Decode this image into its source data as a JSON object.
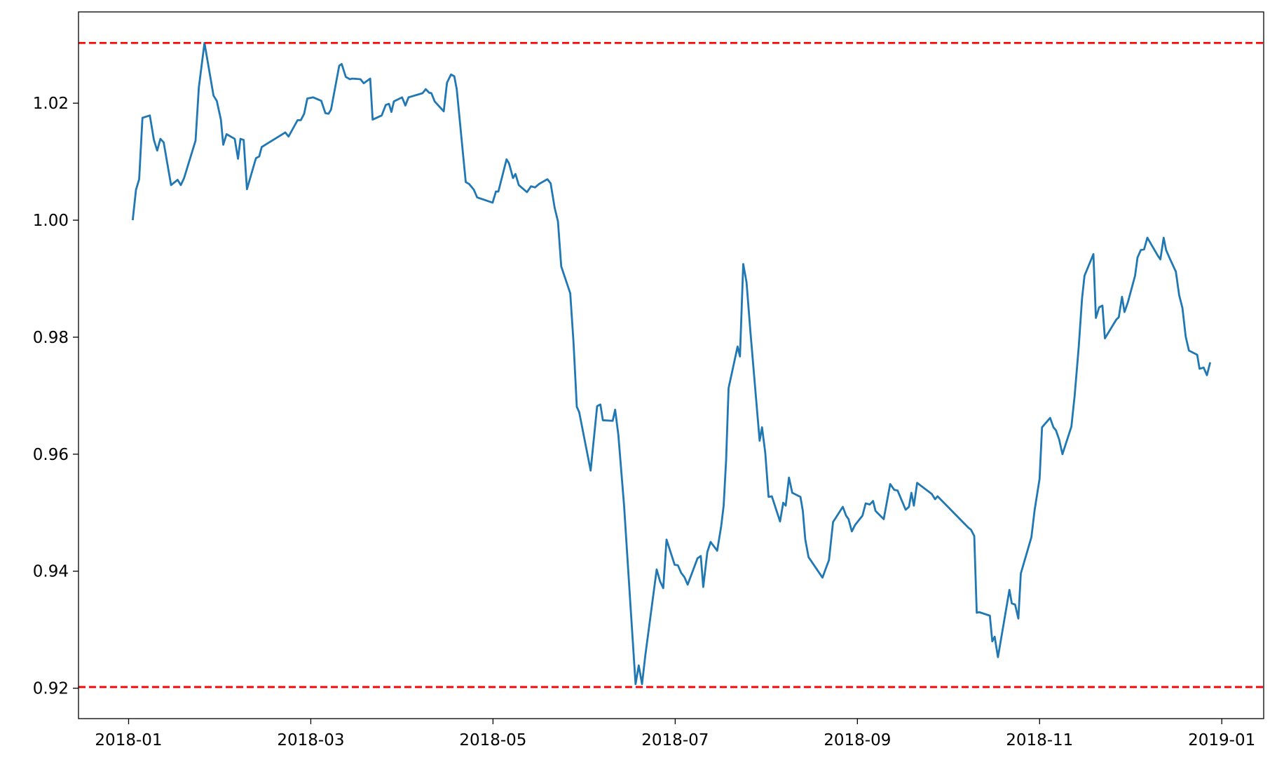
{
  "chart_data": {
    "type": "line",
    "x": [
      0.045,
      0.081,
      0.116,
      0.152,
      0.233,
      0.278,
      0.314,
      0.349,
      0.385,
      0.466,
      0.538,
      0.573,
      0.609,
      0.735,
      0.771,
      0.833,
      0.932,
      0.968,
      1.013,
      1.039,
      1.075,
      1.165,
      1.201,
      1.228,
      1.263,
      1.299,
      1.398,
      1.434,
      1.461,
      1.72,
      1.756,
      1.855,
      1.891,
      1.927,
      1.962,
      2.025,
      2.115,
      2.16,
      2.195,
      2.222,
      2.312,
      2.339,
      2.384,
      2.428,
      2.455,
      2.545,
      2.581,
      2.652,
      2.679,
      2.778,
      2.823,
      2.858,
      2.885,
      2.912,
      3.002,
      3.038,
      3.073,
      3.226,
      3.262,
      3.298,
      3.324,
      3.36,
      3.459,
      3.495,
      3.539,
      3.575,
      3.602,
      3.701,
      3.737,
      3.79,
      3.826,
      3.996,
      4.032,
      4.059,
      4.149,
      4.176,
      4.22,
      4.247,
      4.283,
      4.373,
      4.418,
      4.462,
      4.507,
      4.597,
      4.633,
      4.677,
      4.713,
      4.749,
      4.848,
      4.884,
      4.92,
      4.946,
      5.072,
      5.143,
      5.179,
      5.206,
      5.314,
      5.341,
      5.376,
      5.439,
      5.511,
      5.565,
      5.6,
      5.636,
      5.672,
      5.797,
      5.833,
      5.869,
      5.905,
      5.994,
      6.03,
      6.066,
      6.101,
      6.137,
      6.245,
      6.281,
      6.308,
      6.353,
      6.389,
      6.461,
      6.505,
      6.532,
      6.559,
      6.586,
      6.685,
      6.711,
      6.747,
      6.783,
      6.828,
      6.927,
      6.953,
      6.989,
      7.025,
      7.061,
      7.151,
      7.186,
      7.213,
      7.249,
      7.285,
      7.375,
      7.401,
      7.428,
      7.464,
      7.617,
      7.652,
      7.688,
      7.733,
      7.84,
      7.876,
      7.903,
      7.939,
      7.975,
      8.056,
      8.091,
      8.136,
      8.172,
      8.199,
      8.289,
      8.36,
      8.405,
      8.441,
      8.53,
      8.566,
      8.593,
      8.62,
      8.656,
      8.817,
      8.853,
      8.88,
      9.221,
      9.247,
      9.283,
      9.31,
      9.337,
      9.454,
      9.481,
      9.507,
      9.543,
      9.669,
      9.695,
      9.731,
      9.767,
      9.794,
      9.91,
      9.946,
      10.0,
      10.027,
      10.116,
      10.152,
      10.179,
      10.215,
      10.251,
      10.349,
      10.385,
      10.43,
      10.466,
      10.493,
      10.591,
      10.618,
      10.654,
      10.69,
      10.717,
      10.842,
      10.869,
      10.905,
      10.932,
      10.968,
      11.048,
      11.075,
      11.111,
      11.147,
      11.183,
      11.299,
      11.326,
      11.362,
      11.389,
      11.425,
      11.496,
      11.532,
      11.568,
      11.604,
      11.64,
      11.73,
      11.756,
      11.801,
      11.837,
      11.873
    ],
    "series": [
      {
        "color": "#1f77b4",
        "values": [
          1.0,
          1.0052,
          1.007,
          1.0175,
          1.0179,
          1.0137,
          1.0119,
          1.0139,
          1.0133,
          1.006,
          1.0069,
          1.006,
          1.0072,
          1.0136,
          1.0227,
          1.0303,
          1.0213,
          1.0204,
          1.0172,
          1.0129,
          1.0147,
          1.0139,
          1.0105,
          1.0139,
          1.0137,
          1.0053,
          1.0106,
          1.0109,
          1.0125,
          1.015,
          1.0143,
          1.0171,
          1.0171,
          1.0182,
          1.0208,
          1.021,
          1.0204,
          1.0183,
          1.0182,
          1.0189,
          1.0264,
          1.0267,
          1.0245,
          1.0241,
          1.0242,
          1.0241,
          1.0234,
          1.0242,
          1.0172,
          1.0179,
          1.0197,
          1.0199,
          1.0185,
          1.0203,
          1.021,
          1.0196,
          1.021,
          1.0217,
          1.0224,
          1.0218,
          1.0217,
          1.0203,
          1.0186,
          1.0235,
          1.0249,
          1.0246,
          1.0224,
          1.0065,
          1.0062,
          1.0052,
          1.0039,
          1.003,
          1.0049,
          1.0049,
          1.0104,
          1.0097,
          1.0072,
          1.0079,
          1.006,
          1.0048,
          1.0058,
          1.0056,
          1.0062,
          1.007,
          1.0063,
          1.0021,
          0.9998,
          0.9921,
          0.9875,
          0.9791,
          0.9681,
          0.9672,
          0.9572,
          0.9682,
          0.9685,
          0.9658,
          0.9657,
          0.9676,
          0.9633,
          0.9512,
          0.9337,
          0.9207,
          0.9239,
          0.9207,
          0.9256,
          0.9403,
          0.9383,
          0.9371,
          0.9454,
          0.9411,
          0.941,
          0.9397,
          0.939,
          0.9377,
          0.9422,
          0.9426,
          0.9373,
          0.9433,
          0.945,
          0.9435,
          0.9477,
          0.9512,
          0.959,
          0.9713,
          0.9784,
          0.9767,
          0.9925,
          0.9894,
          0.9805,
          0.9623,
          0.9646,
          0.9602,
          0.9527,
          0.9528,
          0.9485,
          0.9517,
          0.9512,
          0.956,
          0.9534,
          0.9527,
          0.9503,
          0.9454,
          0.9424,
          0.9389,
          0.9404,
          0.9419,
          0.9484,
          0.951,
          0.9495,
          0.9489,
          0.9468,
          0.9479,
          0.9495,
          0.9516,
          0.9514,
          0.952,
          0.9503,
          0.9489,
          0.9549,
          0.9539,
          0.9538,
          0.9505,
          0.951,
          0.9534,
          0.9512,
          0.9551,
          0.9532,
          0.9523,
          0.9528,
          0.9474,
          0.9471,
          0.946,
          0.9329,
          0.933,
          0.9324,
          0.928,
          0.9288,
          0.9253,
          0.9368,
          0.9345,
          0.9343,
          0.9319,
          0.9396,
          0.9458,
          0.9505,
          0.9558,
          0.9646,
          0.9662,
          0.9646,
          0.9641,
          0.9625,
          0.96,
          0.9647,
          0.97,
          0.9784,
          0.9866,
          0.9905,
          0.9942,
          0.9833,
          0.9851,
          0.9854,
          0.9798,
          0.983,
          0.9834,
          0.9869,
          0.9843,
          0.9859,
          0.9905,
          0.9936,
          0.9949,
          0.995,
          0.997,
          0.9939,
          0.9933,
          0.997,
          0.9949,
          0.9936,
          0.9912,
          0.9872,
          0.985,
          0.9801,
          0.9777,
          0.977,
          0.9746,
          0.9748,
          0.9735,
          0.9757
        ]
      }
    ],
    "hlines": [
      {
        "value": 1.0303,
        "color": "#ff0000",
        "style": "dashed"
      },
      {
        "value": 0.9202,
        "color": "#ff0000",
        "style": "dashed"
      }
    ],
    "xlim": [
      -0.55,
      12.46
    ],
    "xticks": [
      {
        "value": 0,
        "label": "2018-01"
      },
      {
        "value": 2,
        "label": "2018-03"
      },
      {
        "value": 4,
        "label": "2018-05"
      },
      {
        "value": 6,
        "label": "2018-07"
      },
      {
        "value": 8,
        "label": "2018-09"
      },
      {
        "value": 10,
        "label": "2018-11"
      },
      {
        "value": 12,
        "label": "2019-01"
      }
    ],
    "ylim": [
      0.9148,
      1.0356
    ],
    "yticks": [
      0.92,
      0.94,
      0.96,
      0.98,
      {
        "value": 1,
        "label": "1.00"
      },
      1.02
    ]
  }
}
